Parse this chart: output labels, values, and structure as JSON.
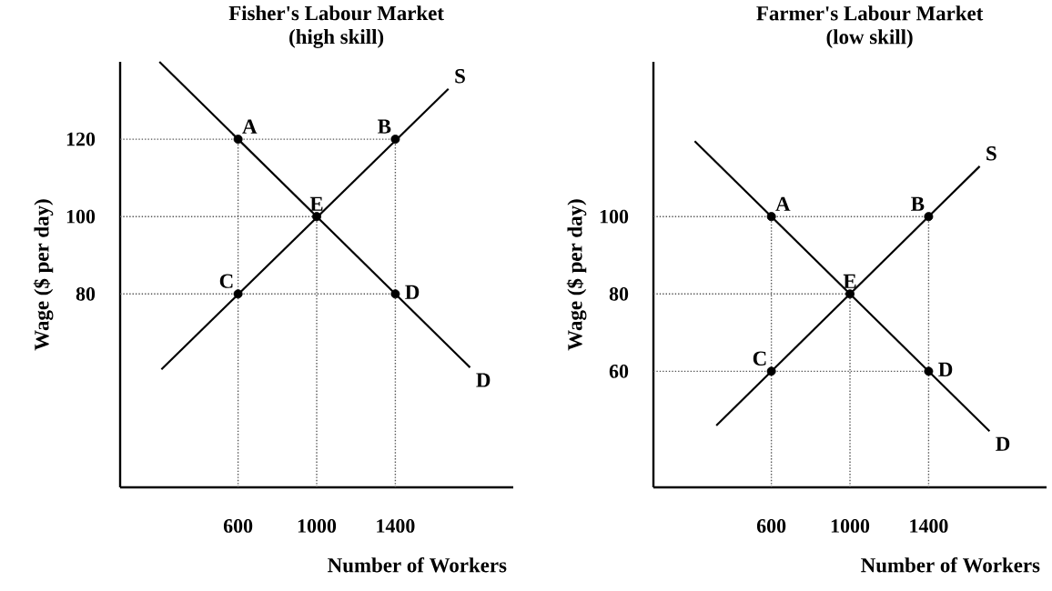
{
  "chart_data": [
    {
      "type": "line",
      "title": "Fisher's Labour Market",
      "subtitle": "(high skill)",
      "xlabel": "Number of Workers",
      "ylabel": "Wage ($ per day)",
      "xlim": [
        0,
        2000
      ],
      "ylim": [
        30,
        140
      ],
      "xticks": [
        600,
        1000,
        1400
      ],
      "yticks": [
        80,
        100,
        120
      ],
      "grid": false,
      "series": [
        {
          "type": "line",
          "name": "D",
          "color": "#000000",
          "marker": "none",
          "line_style": "solid",
          "x": [
            200,
            1780
          ],
          "values": [
            140,
            61
          ]
        },
        {
          "type": "line",
          "name": "S",
          "color": "#000000",
          "marker": "none",
          "line_style": "solid",
          "x": [
            210,
            1670
          ],
          "values": [
            60.5,
            133
          ]
        },
        {
          "type": "line",
          "color": "#555555",
          "marker": "none",
          "line_style": "dotted",
          "x": [
            0,
            1400
          ],
          "values": [
            120,
            120
          ]
        },
        {
          "type": "line",
          "color": "#555555",
          "marker": "none",
          "line_style": "dotted",
          "x": [
            0,
            1000
          ],
          "values": [
            100,
            100
          ]
        },
        {
          "type": "line",
          "color": "#555555",
          "marker": "none",
          "line_style": "dotted",
          "x": [
            0,
            1400
          ],
          "values": [
            80,
            80
          ]
        },
        {
          "type": "line",
          "color": "#555555",
          "marker": "none",
          "line_style": "dotted",
          "x": [
            600,
            600
          ],
          "values": [
            30,
            120
          ]
        },
        {
          "type": "line",
          "color": "#555555",
          "marker": "none",
          "line_style": "dotted",
          "x": [
            1000,
            1000
          ],
          "values": [
            30,
            100
          ]
        },
        {
          "type": "line",
          "color": "#555555",
          "marker": "none",
          "line_style": "dotted",
          "x": [
            1400,
            1400
          ],
          "values": [
            30,
            120
          ]
        },
        {
          "type": "scatter",
          "color": "#000000",
          "marker": "circle",
          "x": [
            600,
            1400,
            1000,
            600,
            1400
          ],
          "values": [
            120,
            120,
            100,
            80,
            80
          ]
        }
      ],
      "annotations": [
        {
          "text": "A",
          "x": 600,
          "y": 120
        },
        {
          "text": "B",
          "x": 1400,
          "y": 120
        },
        {
          "text": "E",
          "x": 1000,
          "y": 100
        },
        {
          "text": "C",
          "x": 600,
          "y": 80
        },
        {
          "text": "D",
          "x": 1400,
          "y": 80
        }
      ]
    },
    {
      "type": "line",
      "title": "Farmer's Labour Market",
      "subtitle": "(low skill)",
      "xlabel": "Number of Workers",
      "ylabel": "Wage ($ per day)",
      "xlim": [
        0,
        2000
      ],
      "ylim": [
        30,
        140
      ],
      "xticks": [
        600,
        1000,
        1400
      ],
      "yticks": [
        60,
        80,
        100
      ],
      "grid": false,
      "series": [
        {
          "type": "line",
          "name": "D",
          "color": "#000000",
          "marker": "none",
          "line_style": "solid",
          "x": [
            210,
            1710
          ],
          "values": [
            119.5,
            44.5
          ]
        },
        {
          "type": "line",
          "name": "S",
          "color": "#000000",
          "marker": "none",
          "line_style": "solid",
          "x": [
            320,
            1660
          ],
          "values": [
            46,
            113
          ]
        },
        {
          "type": "line",
          "color": "#555555",
          "marker": "none",
          "line_style": "dotted",
          "x": [
            0,
            1400
          ],
          "values": [
            100,
            100
          ]
        },
        {
          "type": "line",
          "color": "#555555",
          "marker": "none",
          "line_style": "dotted",
          "x": [
            0,
            1000
          ],
          "values": [
            80,
            80
          ]
        },
        {
          "type": "line",
          "color": "#555555",
          "marker": "none",
          "line_style": "dotted",
          "x": [
            0,
            1400
          ],
          "values": [
            60,
            60
          ]
        },
        {
          "type": "line",
          "color": "#555555",
          "marker": "none",
          "line_style": "dotted",
          "x": [
            600,
            600
          ],
          "values": [
            30,
            100
          ]
        },
        {
          "type": "line",
          "color": "#555555",
          "marker": "none",
          "line_style": "dotted",
          "x": [
            1000,
            1000
          ],
          "values": [
            30,
            80
          ]
        },
        {
          "type": "line",
          "color": "#555555",
          "marker": "none",
          "line_style": "dotted",
          "x": [
            1400,
            1400
          ],
          "values": [
            30,
            100
          ]
        },
        {
          "type": "scatter",
          "color": "#000000",
          "marker": "circle",
          "x": [
            600,
            1400,
            1000,
            600,
            1400
          ],
          "values": [
            100,
            100,
            80,
            60,
            60
          ]
        }
      ],
      "annotations": [
        {
          "text": "A",
          "x": 600,
          "y": 100
        },
        {
          "text": "B",
          "x": 1400,
          "y": 100
        },
        {
          "text": "E",
          "x": 1000,
          "y": 80
        },
        {
          "text": "C",
          "x": 600,
          "y": 60
        },
        {
          "text": "D",
          "x": 1400,
          "y": 60
        }
      ]
    }
  ]
}
